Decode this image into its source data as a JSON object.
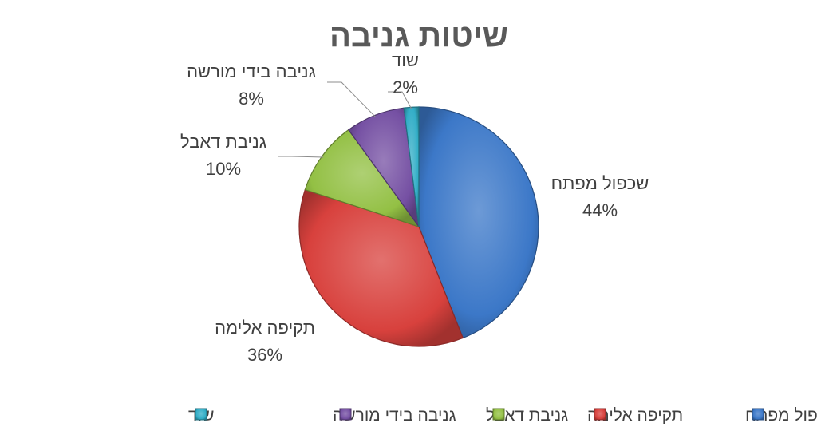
{
  "chart_data": {
    "type": "pie",
    "title": "שיטות גניבה",
    "categories": [
      "שכפול מפתח",
      "תקיפה אלימה",
      "גניבת דאבל",
      "גניבה בידי מורשה",
      "שוד"
    ],
    "values": [
      44,
      36,
      10,
      8,
      2
    ],
    "value_labels": [
      "44%",
      "36%",
      "10%",
      "8%",
      "2%"
    ],
    "colors": [
      "#3C78C8",
      "#D8413D",
      "#93C044",
      "#7550A3",
      "#33AEC7"
    ],
    "legend": "bottom",
    "start_angle": "12 o'clock",
    "direction": "clockwise"
  }
}
